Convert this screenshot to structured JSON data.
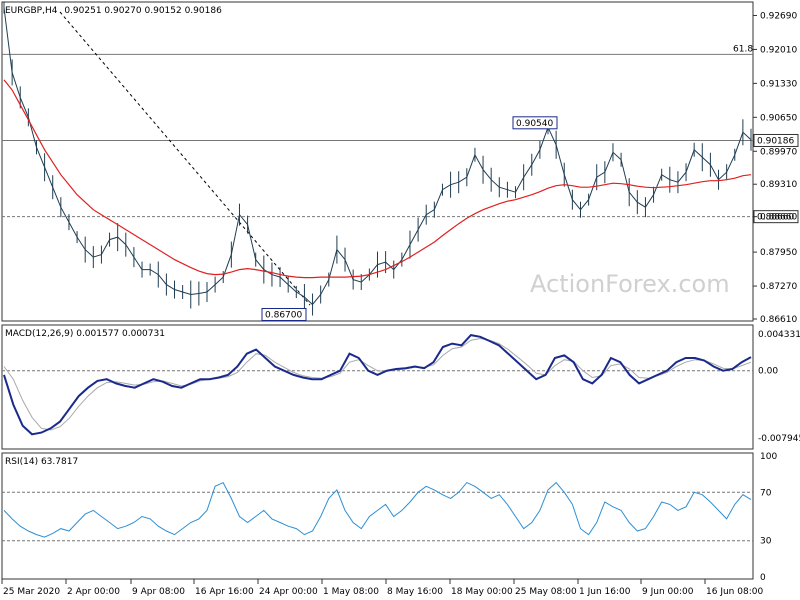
{
  "header": {
    "symbol": "EURGBP,H4",
    "ohlc": "0.90251 0.90270 0.90152 0.90186"
  },
  "watermark": "ActionForex.com",
  "colors": {
    "price": "#1f3d52",
    "sma": "#e02020",
    "macd": "#1a2a8c",
    "signal": "#a9a9a9",
    "rsi": "#2e8fd4",
    "grid": "#777777"
  },
  "chart_data": [
    {
      "type": "line",
      "title": "EURGBP,H4",
      "ylim": [
        0.8661,
        0.9292
      ],
      "y_ticks": [
        "0.92690",
        "0.92010",
        "0.91330",
        "0.90650",
        "0.89970",
        "0.89310",
        "0.88660",
        "0.87950",
        "0.87270",
        "0.86610"
      ],
      "x_ticks": [
        "25 Mar 2020",
        "2 Apr 00:00",
        "9 Apr 08:00",
        "16 Apr 16:00",
        "24 Apr 00:00",
        "1 May 08:00",
        "8 May 16:00",
        "18 May 00:00",
        "25 May 08:00",
        "1 Jun 16:00",
        "9 Jun 00:00",
        "16 Jun 08:00"
      ],
      "series": [
        {
          "values": [
            0.9285,
            0.9155,
            0.9105,
            0.9065,
            0.9005,
            0.8965,
            0.8925,
            0.8885,
            0.8855,
            0.8825,
            0.88,
            0.8785,
            0.879,
            0.882,
            0.8825,
            0.881,
            0.8785,
            0.876,
            0.876,
            0.875,
            0.873,
            0.872,
            0.8715,
            0.871,
            0.8712,
            0.8715,
            0.873,
            0.8745,
            0.879,
            0.887,
            0.885,
            0.878,
            0.876,
            0.875,
            0.8745,
            0.873,
            0.8715,
            0.8705,
            0.869,
            0.871,
            0.874,
            0.88,
            0.878,
            0.874,
            0.8735,
            0.875,
            0.877,
            0.8775,
            0.876,
            0.878,
            0.881,
            0.884,
            0.887,
            0.888,
            0.892,
            0.893,
            0.8935,
            0.8945,
            0.899,
            0.896,
            0.894,
            0.8925,
            0.892,
            0.8915,
            0.8945,
            0.897,
            0.9,
            0.9045,
            0.901,
            0.895,
            0.89,
            0.888,
            0.89,
            0.8945,
            0.8955,
            0.8995,
            0.898,
            0.8915,
            0.8895,
            0.8885,
            0.891,
            0.895,
            0.894,
            0.8935,
            0.8955,
            0.9,
            0.8985,
            0.897,
            0.894,
            0.8955,
            0.899,
            0.9035,
            0.902
          ]
        },
        {
          "values": [
            0.914,
            0.912,
            0.909,
            0.906,
            0.903,
            0.9,
            0.8975,
            0.895,
            0.893,
            0.891,
            0.8895,
            0.888,
            0.887,
            0.886,
            0.885,
            0.884,
            0.883,
            0.882,
            0.881,
            0.88,
            0.879,
            0.878,
            0.8772,
            0.8764,
            0.8757,
            0.8752,
            0.875,
            0.8751,
            0.8755,
            0.876,
            0.8762,
            0.876,
            0.8757,
            0.8754,
            0.875,
            0.8747,
            0.8745,
            0.8744,
            0.8744,
            0.8745,
            0.8745,
            0.8745,
            0.8745,
            0.8746,
            0.8747,
            0.875,
            0.8755,
            0.876,
            0.8768,
            0.8776,
            0.8785,
            0.8795,
            0.8805,
            0.8815,
            0.8828,
            0.884,
            0.8852,
            0.8863,
            0.8872,
            0.888,
            0.8886,
            0.8892,
            0.8897,
            0.89,
            0.8905,
            0.891,
            0.8916,
            0.8923,
            0.8928,
            0.893,
            0.8928,
            0.8925,
            0.8925,
            0.8927,
            0.893,
            0.8933,
            0.8932,
            0.893,
            0.8927,
            0.8925,
            0.8924,
            0.8925,
            0.8926,
            0.8928,
            0.893,
            0.8933,
            0.8936,
            0.8938,
            0.8938,
            0.894,
            0.8943,
            0.8948,
            0.895
          ]
        }
      ],
      "hlines": [
        {
          "value": 0.9191,
          "label": "61.8"
        },
        {
          "value": 0.90186,
          "label": "0.90186"
        },
        {
          "value": 0.8866,
          "label": "0.88660"
        }
      ],
      "annotations": [
        "0.90540",
        "0.86700"
      ]
    },
    {
      "type": "line",
      "title": "MACD(12,26,9) 0.001577 0.000731",
      "ylim": [
        -0.009,
        0.0048
      ],
      "y_ticks": [
        "0.004331",
        "0.00",
        "-0.007945"
      ],
      "series": [
        {
          "values": [
            -0.0005,
            -0.004,
            -0.0065,
            -0.0075,
            -0.0073,
            -0.0068,
            -0.006,
            -0.0045,
            -0.003,
            -0.002,
            -0.0012,
            -0.001,
            -0.0015,
            -0.0018,
            -0.002,
            -0.0015,
            -0.001,
            -0.0013,
            -0.0018,
            -0.002,
            -0.0015,
            -0.001,
            -0.001,
            -0.0008,
            -0.0005,
            0.0005,
            0.002,
            0.0025,
            0.0015,
            0.0005,
            0.0,
            -0.0005,
            -0.0008,
            -0.001,
            -0.001,
            -0.0005,
            0.0,
            0.002,
            0.0015,
            0.0,
            -0.0005,
            0.0,
            0.0002,
            0.0003,
            0.0005,
            0.0003,
            0.001,
            0.0028,
            0.0032,
            0.003,
            0.0042,
            0.004,
            0.0035,
            0.003,
            0.002,
            0.001,
            0.0,
            -0.001,
            -0.0005,
            0.0015,
            0.0018,
            0.001,
            -0.001,
            -0.0015,
            -0.0005,
            0.0015,
            0.001,
            -0.0005,
            -0.0015,
            -0.001,
            -0.0005,
            0.0,
            0.001,
            0.0015,
            0.0015,
            0.0012,
            0.0005,
            0.0,
            0.0002,
            0.001,
            0.0016
          ],
          "name": ""
        },
        {
          "values": [
            0.0005,
            -0.001,
            -0.0035,
            -0.0055,
            -0.0068,
            -0.007,
            -0.0066,
            -0.0056,
            -0.0042,
            -0.003,
            -0.002,
            -0.0014,
            -0.0013,
            -0.0015,
            -0.0017,
            -0.0016,
            -0.0013,
            -0.0012,
            -0.0015,
            -0.0018,
            -0.0016,
            -0.0012,
            -0.001,
            -0.0009,
            -0.0007,
            -0.0002,
            0.001,
            0.002,
            0.0018,
            0.001,
            0.0004,
            -0.0002,
            -0.0006,
            -0.0008,
            -0.0009,
            -0.0007,
            -0.0003,
            0.001,
            0.0013,
            0.0006,
            0.0,
            -0.0001,
            0.0001,
            0.0002,
            0.0004,
            0.0004,
            0.0007,
            0.0018,
            0.0026,
            0.0028,
            0.0036,
            0.0038,
            0.0036,
            0.0032,
            0.0025,
            0.0016,
            0.0007,
            -0.0003,
            -0.0005,
            0.0006,
            0.0013,
            0.0011,
            0.0,
            -0.0008,
            -0.0006,
            0.0006,
            0.0008,
            0.0002,
            -0.0008,
            -0.0009,
            -0.0006,
            -0.0002,
            0.0005,
            0.001,
            0.0013,
            0.0012,
            0.0008,
            0.0003,
            0.0002,
            0.0006,
            0.001
          ],
          "name": ""
        }
      ]
    },
    {
      "type": "line",
      "title": "RSI(14) 63.7817",
      "ylim": [
        0,
        100
      ],
      "y_ticks": [
        "100",
        "70",
        "30",
        "0"
      ],
      "levels": [
        70,
        30
      ],
      "series": [
        {
          "values": [
            55,
            48,
            42,
            38,
            35,
            33,
            36,
            40,
            38,
            45,
            52,
            55,
            50,
            45,
            40,
            42,
            45,
            50,
            48,
            42,
            38,
            35,
            40,
            45,
            48,
            55,
            75,
            78,
            65,
            50,
            45,
            50,
            55,
            48,
            45,
            42,
            40,
            35,
            38,
            50,
            65,
            72,
            55,
            45,
            40,
            50,
            55,
            60,
            50,
            55,
            62,
            70,
            75,
            72,
            68,
            65,
            70,
            78,
            75,
            70,
            65,
            68,
            60,
            50,
            40,
            45,
            55,
            72,
            78,
            70,
            60,
            40,
            35,
            45,
            62,
            58,
            55,
            45,
            38,
            40,
            50,
            62,
            60,
            55,
            58,
            70,
            68,
            62,
            55,
            48,
            60,
            68,
            64
          ],
          "name": ""
        }
      ]
    }
  ]
}
